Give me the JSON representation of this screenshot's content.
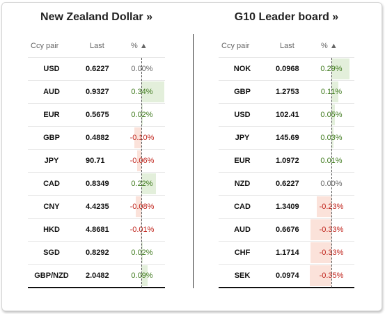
{
  "left": {
    "title": "New Zealand Dollar »",
    "headers": {
      "pair": "Ccy pair",
      "last": "Last",
      "pct": "% ▲"
    },
    "rows": [
      {
        "pair": "USD",
        "last": "0.6227",
        "pct": "0.00%",
        "value": 0.0
      },
      {
        "pair": "AUD",
        "last": "0.9327",
        "pct": "0.34%",
        "value": 0.34
      },
      {
        "pair": "EUR",
        "last": "0.5675",
        "pct": "0.02%",
        "value": 0.02
      },
      {
        "pair": "GBP",
        "last": "0.4882",
        "pct": "-0.10%",
        "value": -0.1
      },
      {
        "pair": "JPY",
        "last": "90.71",
        "pct": "-0.06%",
        "value": -0.06
      },
      {
        "pair": "CAD",
        "last": "0.8349",
        "pct": "0.22%",
        "value": 0.22
      },
      {
        "pair": "CNY",
        "last": "4.4235",
        "pct": "-0.08%",
        "value": -0.08
      },
      {
        "pair": "HKD",
        "last": "4.8681",
        "pct": "-0.01%",
        "value": -0.01
      },
      {
        "pair": "SGD",
        "last": "0.8292",
        "pct": "0.02%",
        "value": 0.02
      },
      {
        "pair": "GBP/NZD",
        "last": "2.0482",
        "pct": "0.09%",
        "value": 0.09
      }
    ]
  },
  "right": {
    "title": "G10 Leader board »",
    "headers": {
      "pair": "Ccy pair",
      "last": "Last",
      "pct": "% ▲"
    },
    "rows": [
      {
        "pair": "NOK",
        "last": "0.0968",
        "pct": "0.29%",
        "value": 0.29
      },
      {
        "pair": "GBP",
        "last": "1.2753",
        "pct": "0.11%",
        "value": 0.11
      },
      {
        "pair": "USD",
        "last": "102.41",
        "pct": "0.05%",
        "value": 0.05
      },
      {
        "pair": "JPY",
        "last": "145.69",
        "pct": "0.03%",
        "value": 0.03
      },
      {
        "pair": "EUR",
        "last": "1.0972",
        "pct": "0.01%",
        "value": 0.01
      },
      {
        "pair": "NZD",
        "last": "0.6227",
        "pct": "0.00%",
        "value": 0.0
      },
      {
        "pair": "CAD",
        "last": "1.3409",
        "pct": "-0.23%",
        "value": -0.23
      },
      {
        "pair": "AUD",
        "last": "0.6676",
        "pct": "-0.33%",
        "value": -0.33
      },
      {
        "pair": "CHF",
        "last": "1.1714",
        "pct": "-0.33%",
        "value": -0.33
      },
      {
        "pair": "SEK",
        "last": "0.0974",
        "pct": "-0.35%",
        "value": -0.35
      }
    ]
  },
  "colors": {
    "positive_text": "#3f7a1d",
    "negative_text": "#c0231b",
    "positive_bar": "#e3efdb",
    "negative_bar": "#fbe2da"
  }
}
